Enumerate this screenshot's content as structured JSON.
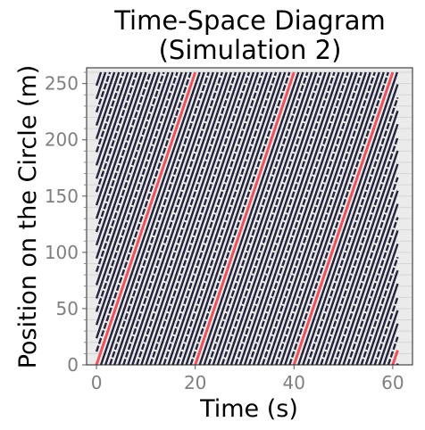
{
  "chart_data": {
    "type": "line",
    "title_lines": [
      "Time-Space Diagram",
      "(Simulation 2)"
    ],
    "xlabel": "Time (s)",
    "ylabel": "Position on the Circle (m)",
    "xlim": [
      -2,
      64
    ],
    "ylim": [
      0,
      264
    ],
    "xticks": [
      0,
      20,
      40,
      60
    ],
    "yticks": [
      0,
      50,
      100,
      150,
      200,
      250
    ],
    "grid": "horizontal",
    "circumference_m": 260,
    "vehicle_count": 22,
    "time_range": [
      0,
      61
    ],
    "trajectory_slope_m_per_s": 13,
    "highlighted_vehicle_crossings_s": [
      0,
      20.5,
      40.5,
      60
    ],
    "colors": {
      "background": "#ebebeb",
      "vehicle": "#23233c",
      "highlight": "#f0505a",
      "grid": "#d6d6d6",
      "tick_text": "#7f7f7f"
    }
  }
}
